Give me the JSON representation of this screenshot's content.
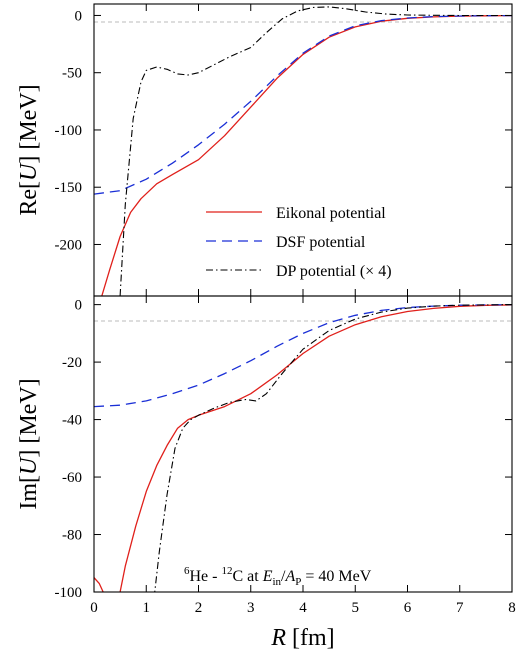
{
  "chart_data": [
    {
      "type": "line",
      "ylabel": "Re[U] [MeV]",
      "xlim": [
        0,
        8
      ],
      "ylim": [
        -245,
        10
      ],
      "yticks": [
        0,
        -50,
        -100,
        -150,
        -200
      ],
      "zero_line": true,
      "legend": {
        "position": "bottom-right"
      },
      "series": [
        {
          "name": "Eikonal potential",
          "color": "#e0201b",
          "dash": "solid",
          "x": [
            0.15,
            0.3,
            0.5,
            0.7,
            0.9,
            1.2,
            1.5,
            2.0,
            2.5,
            3.0,
            3.5,
            4.0,
            4.5,
            5.0,
            5.5,
            6.0,
            6.5,
            7.0,
            7.5,
            8.0
          ],
          "y": [
            -245,
            -222,
            -193,
            -172,
            -160,
            -147,
            -139,
            -126,
            -105,
            -80,
            -55,
            -34,
            -19,
            -10,
            -5,
            -2.5,
            -1.3,
            -0.6,
            -0.3,
            -0.1
          ]
        },
        {
          "name": "DSF potential",
          "color": "#1a2fd6",
          "dash": "dash",
          "x": [
            0,
            0.5,
            1.0,
            1.5,
            2.0,
            2.5,
            3.0,
            3.5,
            4.0,
            4.5,
            5.0,
            5.5,
            6.0,
            6.5,
            7.0,
            7.5,
            8.0
          ],
          "y": [
            -156,
            -153,
            -143,
            -129,
            -113,
            -95,
            -75,
            -53,
            -33,
            -18,
            -9,
            -4.5,
            -2.2,
            -1.0,
            -0.5,
            -0.2,
            -0.1
          ]
        },
        {
          "name": "DP potential (× 4)",
          "color": "#000000",
          "dash": "dashdot",
          "x": [
            0.5,
            0.6,
            0.75,
            0.9,
            1.0,
            1.2,
            1.4,
            1.6,
            1.8,
            2.0,
            2.3,
            2.6,
            3.0,
            3.3,
            3.6,
            3.9,
            4.2,
            4.5,
            4.8,
            5.2,
            5.6,
            6.0,
            6.5,
            7.0,
            8.0
          ],
          "y": [
            -245,
            -165,
            -90,
            -58,
            -48,
            -45,
            -47,
            -51,
            -52,
            -50,
            -43,
            -36,
            -28,
            -15,
            -3,
            4,
            7,
            7.5,
            6,
            3,
            1.2,
            0.4,
            0.1,
            0,
            0
          ]
        }
      ]
    },
    {
      "type": "line",
      "xlabel": "R [fm]",
      "ylabel": "Im[U] [MeV]",
      "xlim": [
        0,
        8
      ],
      "ylim": [
        -100,
        3
      ],
      "xticks": [
        0,
        1,
        2,
        3,
        4,
        5,
        6,
        7,
        8
      ],
      "yticks": [
        0,
        -20,
        -40,
        -60,
        -80,
        -100
      ],
      "zero_line": true,
      "series": [
        {
          "name": "Eikonal potential",
          "color": "#e0201b",
          "dash": "solid",
          "x": [
            0,
            0.1,
            0.2,
            0.4,
            0.5,
            0.6,
            0.8,
            1.0,
            1.2,
            1.4,
            1.6,
            1.8,
            2.0,
            2.5,
            3.0,
            3.5,
            4.0,
            4.5,
            5.0,
            5.5,
            6.0,
            6.5,
            7.0,
            7.5,
            8.0
          ],
          "y": [
            -95,
            -97,
            -101,
            -107,
            -100,
            -91,
            -77,
            -65,
            -56,
            -49,
            -43,
            -40,
            -38.5,
            -35.5,
            -31,
            -24.5,
            -17,
            -11,
            -7,
            -4.2,
            -2.4,
            -1.3,
            -0.6,
            -0.25,
            -0.1
          ]
        },
        {
          "name": "DSF potential",
          "color": "#1a2fd6",
          "dash": "dash",
          "x": [
            0,
            0.5,
            1.0,
            1.5,
            2.0,
            2.5,
            3.0,
            3.5,
            4.0,
            4.5,
            5.0,
            5.5,
            6.0,
            6.5,
            7.0,
            7.5,
            8.0
          ],
          "y": [
            -35.5,
            -35,
            -33.5,
            -31,
            -28,
            -24,
            -19.5,
            -14.5,
            -10,
            -6.3,
            -3.7,
            -2.0,
            -1.0,
            -0.5,
            -0.2,
            -0.1,
            0
          ]
        },
        {
          "name": "DP potential (× 4)",
          "color": "#000000",
          "dash": "dashdot",
          "x": [
            1.15,
            1.25,
            1.4,
            1.55,
            1.7,
            1.85,
            2.0,
            2.3,
            2.6,
            2.9,
            3.1,
            3.3,
            3.6,
            4.0,
            4.5,
            5.0,
            5.5,
            6.0,
            6.5,
            7.0,
            8.0
          ],
          "y": [
            -102,
            -86,
            -66,
            -50,
            -43,
            -40,
            -38.5,
            -36,
            -34,
            -33,
            -33.5,
            -31,
            -24,
            -15.5,
            -9,
            -5,
            -2.6,
            -1.2,
            -0.5,
            -0.2,
            0
          ]
        }
      ]
    }
  ],
  "annotation": {
    "nuc1_mass": "6",
    "nuc1": "He",
    "sep": " - ",
    "nuc2_mass": "12",
    "nuc2": "C",
    "at": " at ",
    "E": "E",
    "E_sub": "in",
    "slash": "/",
    "A": "A",
    "A_sub": "P",
    "value": " = 40 MeV"
  },
  "ylabel_top": {
    "pre": "Re[",
    "var": "U",
    "post": "] [MeV]"
  },
  "ylabel_bottom": {
    "pre": "Im[",
    "var": "U",
    "post": "] [MeV]"
  },
  "xlabel": {
    "var": "R",
    "post": " [fm]"
  }
}
